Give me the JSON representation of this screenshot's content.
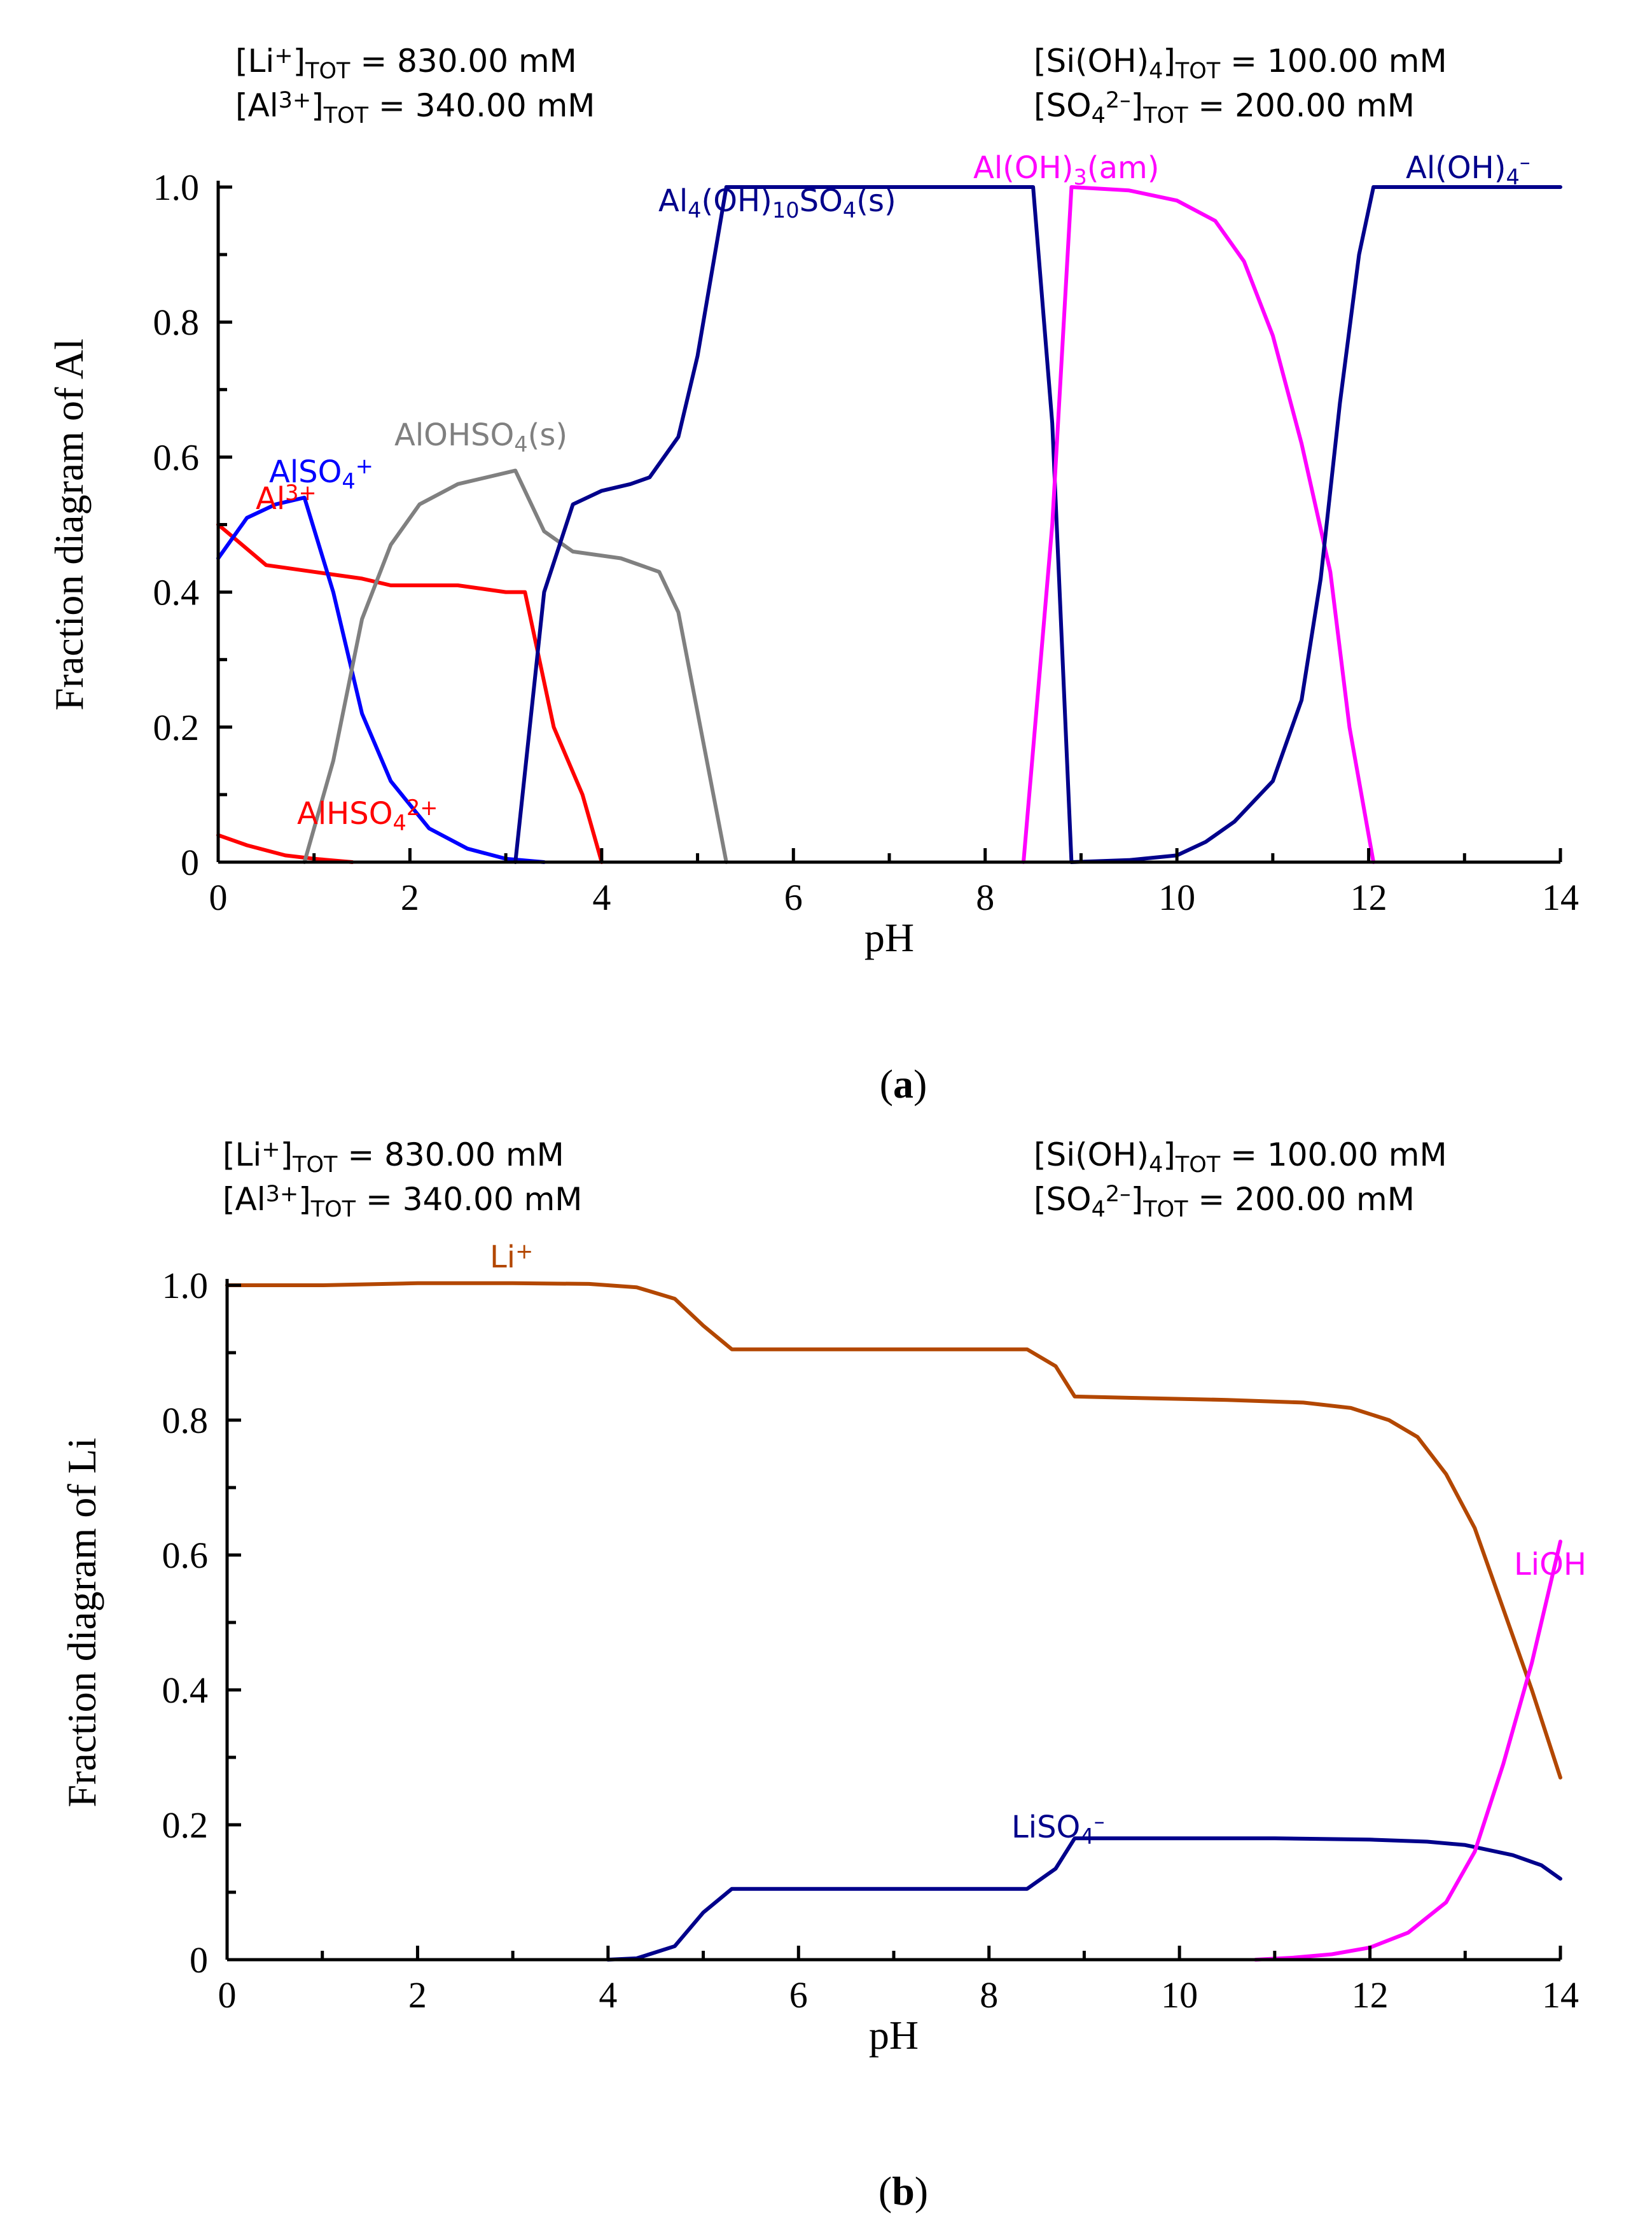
{
  "chart_data": [
    {
      "type": "line",
      "panel_label": "a",
      "xlabel": "pH",
      "ylabel": "Fraction diagram of Al",
      "xlim": [
        0,
        14
      ],
      "ylim": [
        0,
        1
      ],
      "xticks": [
        0,
        2,
        4,
        6,
        8,
        10,
        12,
        14
      ],
      "yticks": [
        0,
        0.2,
        0.4,
        0.6,
        0.8,
        1.0
      ],
      "ytick_labels": [
        "0",
        "0.2",
        "0.4",
        "0.6",
        "0.8",
        "1.0"
      ],
      "conditions": {
        "li_tot": {
          "base": "[Li",
          "sup": "+",
          "close": "]",
          "sub": "TOT",
          "value": " =  830.00 mM"
        },
        "al_tot": {
          "base": "[Al",
          "sup": "3+",
          "close": "]",
          "sub": "TOT",
          "value": " =  340.00 mM"
        },
        "si_tot": {
          "base": "[Si(OH)",
          "sub1": "4",
          "close": "]",
          "sub": "TOT",
          "value": " =  100.00 mM"
        },
        "so4_tot": {
          "base": "[SO",
          "sub1": "4",
          "sup": "2–",
          "close": "]",
          "sub": "TOT",
          "value": " =  200.00 mM"
        }
      },
      "series": [
        {
          "name": "Al3+",
          "color": "#ff0000",
          "label": {
            "parts": [
              [
                "Al",
                ""
              ],
              [
                "3+",
                "sup"
              ]
            ]
          },
          "points": [
            [
              0,
              0.5
            ],
            [
              0.5,
              0.44
            ],
            [
              1,
              0.43
            ],
            [
              1.5,
              0.42
            ],
            [
              1.8,
              0.41
            ],
            [
              2.5,
              0.41
            ],
            [
              3,
              0.4
            ],
            [
              3.2,
              0.4
            ],
            [
              3.5,
              0.2
            ],
            [
              3.8,
              0.1
            ],
            [
              4,
              0
            ]
          ]
        },
        {
          "name": "AlSO4+",
          "color": "#0000ff",
          "label": {
            "parts": [
              [
                "AlSO",
                ""
              ],
              [
                "4",
                "sub"
              ],
              [
                "+",
                "sup"
              ]
            ]
          },
          "points": [
            [
              0,
              0.45
            ],
            [
              0.3,
              0.51
            ],
            [
              0.6,
              0.53
            ],
            [
              0.9,
              0.54
            ],
            [
              1.2,
              0.4
            ],
            [
              1.5,
              0.22
            ],
            [
              1.8,
              0.12
            ],
            [
              2.2,
              0.05
            ],
            [
              2.6,
              0.02
            ],
            [
              3,
              0.005
            ],
            [
              3.4,
              0
            ]
          ]
        },
        {
          "name": "AlHSO42+",
          "color": "#ff0000",
          "label": {
            "parts": [
              [
                "AlHSO",
                ""
              ],
              [
                "4",
                "sub"
              ],
              [
                "2+",
                "sup"
              ]
            ]
          },
          "points": [
            [
              0,
              0.04
            ],
            [
              0.3,
              0.025
            ],
            [
              0.7,
              0.01
            ],
            [
              1.0,
              0.005
            ],
            [
              1.4,
              0
            ]
          ]
        },
        {
          "name": "AlOHSO4(s)",
          "color": "#808080",
          "label": {
            "parts": [
              [
                "AlOHSO",
                ""
              ],
              [
                "4",
                "sub"
              ],
              [
                "(s)",
                ""
              ]
            ]
          },
          "points": [
            [
              0.9,
              0
            ],
            [
              1.2,
              0.15
            ],
            [
              1.5,
              0.36
            ],
            [
              1.8,
              0.47
            ],
            [
              2.1,
              0.53
            ],
            [
              2.5,
              0.56
            ],
            [
              3.1,
              0.58
            ],
            [
              3.4,
              0.49
            ],
            [
              3.7,
              0.46
            ],
            [
              4.2,
              0.45
            ],
            [
              4.6,
              0.43
            ],
            [
              4.8,
              0.37
            ],
            [
              5.3,
              0
            ]
          ]
        },
        {
          "name": "Al4(OH)10SO4(s)",
          "color": "#00008b",
          "label": {
            "parts": [
              [
                "Al",
                ""
              ],
              [
                "4",
                "sub"
              ],
              [
                "(OH)",
                ""
              ],
              [
                "10",
                "sub"
              ],
              [
                "SO",
                ""
              ],
              [
                "4",
                "sub"
              ],
              [
                "(s)",
                ""
              ]
            ]
          },
          "points": [
            [
              3.1,
              0
            ],
            [
              3.4,
              0.4
            ],
            [
              3.7,
              0.53
            ],
            [
              4.0,
              0.55
            ],
            [
              4.3,
              0.56
            ],
            [
              4.5,
              0.57
            ],
            [
              4.8,
              0.63
            ],
            [
              5.0,
              0.75
            ],
            [
              5.3,
              1.0
            ],
            [
              8.5,
              1.0
            ],
            [
              8.7,
              0.65
            ],
            [
              8.9,
              0
            ]
          ]
        },
        {
          "name": "Al(OH)3(am)",
          "color": "#ff00ff",
          "label": {
            "parts": [
              [
                "Al(OH)",
                ""
              ],
              [
                "3",
                "sub"
              ],
              [
                "(am)",
                ""
              ]
            ]
          },
          "points": [
            [
              8.4,
              0
            ],
            [
              8.7,
              0.5
            ],
            [
              8.9,
              1.0
            ],
            [
              9.5,
              0.995
            ],
            [
              10,
              0.98
            ],
            [
              10.4,
              0.95
            ],
            [
              10.7,
              0.89
            ],
            [
              11,
              0.78
            ],
            [
              11.3,
              0.62
            ],
            [
              11.6,
              0.43
            ],
            [
              11.8,
              0.2
            ],
            [
              12.05,
              0
            ]
          ]
        },
        {
          "name": "Al(OH)4-",
          "color": "#00008b",
          "label": {
            "parts": [
              [
                "Al(OH)",
                ""
              ],
              [
                "4",
                "sub"
              ],
              [
                "–",
                "sup"
              ]
            ]
          },
          "points": [
            [
              8.9,
              0
            ],
            [
              9.5,
              0.003
            ],
            [
              10,
              0.01
            ],
            [
              10.3,
              0.03
            ],
            [
              10.6,
              0.06
            ],
            [
              11,
              0.12
            ],
            [
              11.3,
              0.24
            ],
            [
              11.5,
              0.42
            ],
            [
              11.7,
              0.68
            ],
            [
              11.9,
              0.9
            ],
            [
              12.05,
              1.0
            ],
            [
              14,
              1.0
            ]
          ]
        }
      ]
    },
    {
      "type": "line",
      "panel_label": "b",
      "xlabel": "pH",
      "ylabel": "Fraction diagram of Li",
      "xlim": [
        0,
        14
      ],
      "ylim": [
        0,
        1
      ],
      "xticks": [
        0,
        2,
        4,
        6,
        8,
        10,
        12,
        14
      ],
      "yticks": [
        0,
        0.2,
        0.4,
        0.6,
        0.8,
        1.0
      ],
      "ytick_labels": [
        "0",
        "0.2",
        "0.4",
        "0.6",
        "0.8",
        "1.0"
      ],
      "conditions": {
        "li_tot": {
          "base": "[Li",
          "sup": "+",
          "close": "]",
          "sub": "TOT",
          "value": " =  830.00 mM"
        },
        "al_tot": {
          "base": "[Al",
          "sup": "3+",
          "close": "]",
          "sub": "TOT",
          "value": " =  340.00 mM"
        },
        "si_tot": {
          "base": "[Si(OH)",
          "sub1": "4",
          "close": "]",
          "sub": "TOT",
          "value": " =  100.00 mM"
        },
        "so4_tot": {
          "base": "[SO",
          "sub1": "4",
          "sup": "2–",
          "close": "]",
          "sub": "TOT",
          "value": " =  200.00 mM"
        }
      },
      "series": [
        {
          "name": "Li+",
          "color": "#b34700",
          "label": {
            "parts": [
              [
                "Li",
                ""
              ],
              [
                "+",
                "sup"
              ]
            ]
          },
          "points": [
            [
              0,
              1.0
            ],
            [
              1,
              1.0
            ],
            [
              2,
              1.003
            ],
            [
              3,
              1.003
            ],
            [
              3.8,
              1.002
            ],
            [
              4.3,
              0.997
            ],
            [
              4.7,
              0.98
            ],
            [
              5.0,
              0.94
            ],
            [
              5.3,
              0.905
            ],
            [
              8.4,
              0.905
            ],
            [
              8.7,
              0.88
            ],
            [
              8.9,
              0.835
            ],
            [
              9.5,
              0.833
            ],
            [
              10.5,
              0.83
            ],
            [
              11.3,
              0.826
            ],
            [
              11.8,
              0.818
            ],
            [
              12.2,
              0.8
            ],
            [
              12.5,
              0.775
            ],
            [
              12.8,
              0.72
            ],
            [
              13.1,
              0.64
            ],
            [
              13.4,
              0.52
            ],
            [
              13.7,
              0.4
            ],
            [
              14,
              0.27
            ]
          ]
        },
        {
          "name": "LiSO4-",
          "color": "#00008b",
          "label": {
            "parts": [
              [
                "LiSO",
                ""
              ],
              [
                "4",
                "sub"
              ],
              [
                "–",
                "sup"
              ]
            ]
          },
          "points": [
            [
              4.0,
              0
            ],
            [
              4.3,
              0.002
            ],
            [
              4.7,
              0.02
            ],
            [
              5.0,
              0.07
            ],
            [
              5.3,
              0.105
            ],
            [
              8.4,
              0.105
            ],
            [
              8.7,
              0.135
            ],
            [
              8.9,
              0.18
            ],
            [
              10,
              0.18
            ],
            [
              11,
              0.18
            ],
            [
              12,
              0.178
            ],
            [
              12.6,
              0.175
            ],
            [
              13,
              0.17
            ],
            [
              13.5,
              0.155
            ],
            [
              13.8,
              0.14
            ],
            [
              14,
              0.12
            ]
          ]
        },
        {
          "name": "LiOH",
          "color": "#ff00ff",
          "label": {
            "parts": [
              [
                "LiOH",
                ""
              ]
            ]
          },
          "points": [
            [
              10.8,
              0
            ],
            [
              11.2,
              0.003
            ],
            [
              11.6,
              0.008
            ],
            [
              12,
              0.018
            ],
            [
              12.4,
              0.04
            ],
            [
              12.8,
              0.085
            ],
            [
              13.1,
              0.16
            ],
            [
              13.4,
              0.29
            ],
            [
              13.7,
              0.44
            ],
            [
              14,
              0.62
            ]
          ]
        }
      ]
    }
  ]
}
